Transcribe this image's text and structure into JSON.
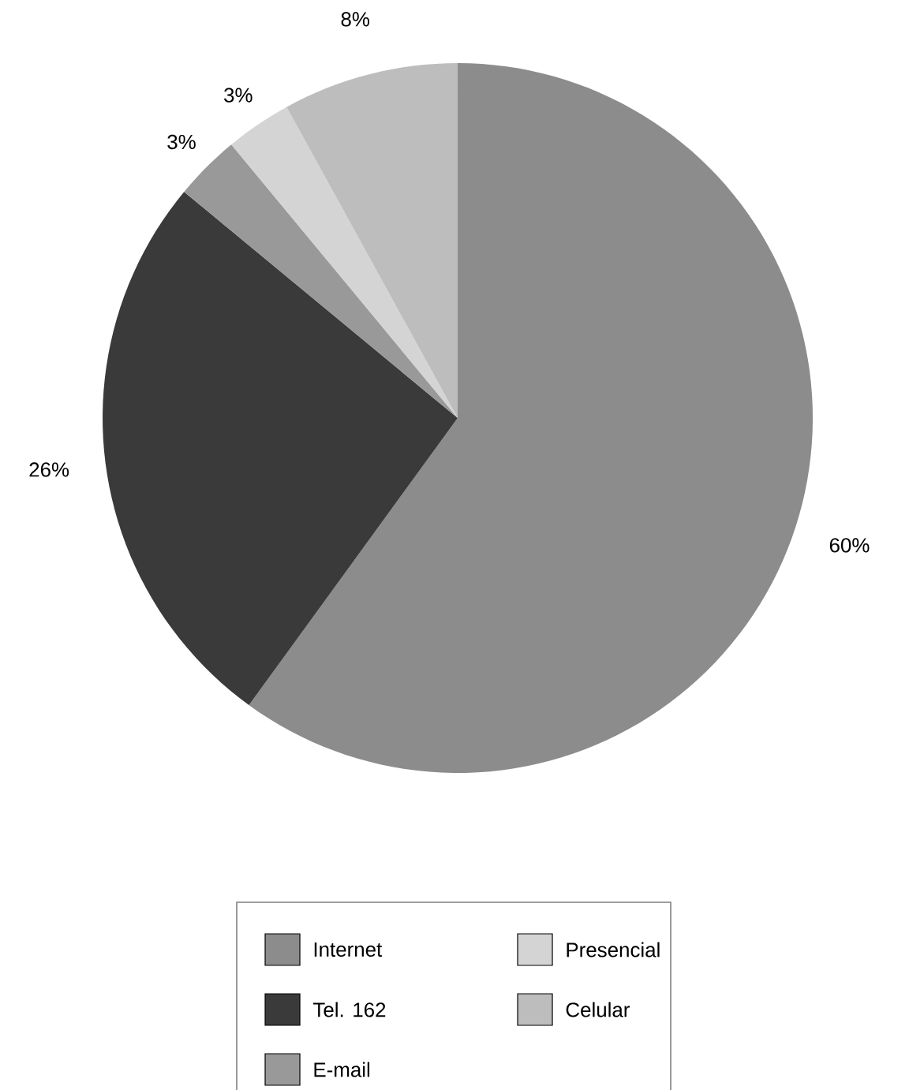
{
  "chart_data": {
    "type": "pie",
    "categories": [
      "Internet",
      "Tel. 162",
      "E-mail",
      "Presencial",
      "Celular"
    ],
    "values": [
      60,
      26,
      3,
      3,
      8
    ],
    "colors": [
      "#8c8c8c",
      "#3a3a3a",
      "#999999",
      "#d4d4d4",
      "#bdbdbd"
    ],
    "value_labels": [
      "60%",
      "26%",
      "3%",
      "3%",
      "8%"
    ],
    "legend": "bottom"
  }
}
